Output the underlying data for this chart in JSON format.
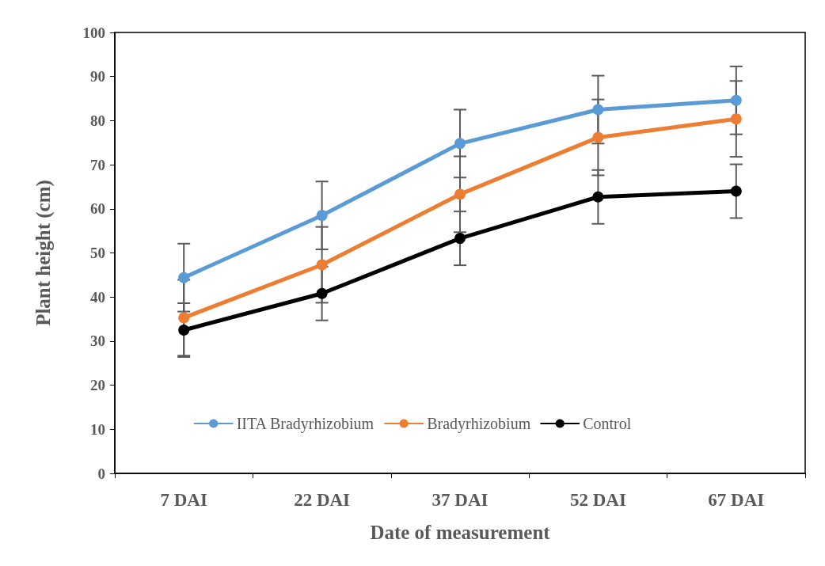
{
  "chart_data": {
    "type": "line",
    "xlabel": "Date of measurement",
    "ylabel": "Plant height (cm)",
    "categories": [
      "7 DAI",
      "22 DAI",
      "37 DAI",
      "52 DAI",
      "67 DAI"
    ],
    "series": [
      {
        "name": "IITA Bradyrhizobium",
        "color": "#5b9bd5",
        "values": [
          44.4,
          58.5,
          74.8,
          82.5,
          84.6
        ],
        "errors": [
          7.7,
          7.7,
          7.7,
          7.7,
          7.7
        ]
      },
      {
        "name": "Bradyrhizobium",
        "color": "#ed7d31",
        "values": [
          35.3,
          47.3,
          63.3,
          76.2,
          80.4
        ],
        "errors": [
          8.6,
          8.6,
          8.6,
          8.6,
          8.6
        ]
      },
      {
        "name": "Control",
        "color": "#000000",
        "values": [
          32.5,
          40.8,
          53.3,
          62.7,
          64.0
        ],
        "errors": [
          6.1,
          6.1,
          6.1,
          6.1,
          6.1
        ]
      }
    ],
    "ylim": [
      0,
      100
    ],
    "yticks": [
      0,
      10,
      20,
      30,
      40,
      50,
      60,
      70,
      80,
      90,
      100
    ],
    "grid": false,
    "legend": "bottom",
    "marker": "circle",
    "line_style": "solid"
  }
}
